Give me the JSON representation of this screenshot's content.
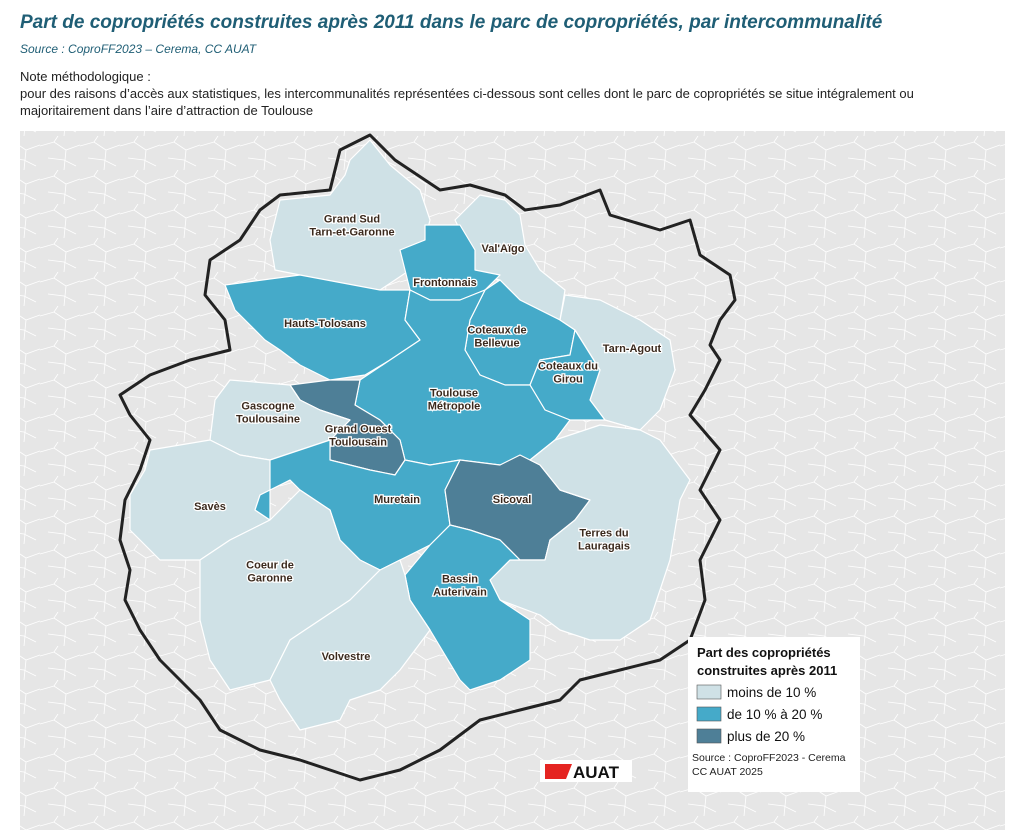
{
  "header": {
    "title": "Part de copropriétés construites après 2011 dans le parc de copropriétés, par intercommunalité",
    "source": "Source : CoproFF2023 – Cerema, CC AUAT"
  },
  "note": {
    "heading": "Note méthodologique :",
    "text": "pour des raisons d’accès aux statistiques, les intercommunalités représentées ci-dessous sont celles dont le parc de copropriétés se situe intégralement ou majoritairement dans l’aire d’attraction de Toulouse"
  },
  "map": {
    "regions": [
      {
        "label": [
          "Grand Sud",
          "Tarn-et-Garonne"
        ],
        "class": 0
      },
      {
        "label": [
          "Val'Aïgo"
        ],
        "class": 0
      },
      {
        "label": [
          "Frontonnais"
        ],
        "class": 1
      },
      {
        "label": [
          "Hauts-Tolosans"
        ],
        "class": 1
      },
      {
        "label": [
          "Coteaux de",
          "Bellevue"
        ],
        "class": 1
      },
      {
        "label": [
          "Tarn-Agout"
        ],
        "class": 0
      },
      {
        "label": [
          "Coteaux du",
          "Girou"
        ],
        "class": 1
      },
      {
        "label": [
          "Toulouse",
          "Métropole"
        ],
        "class": 1
      },
      {
        "label": [
          "Grand Ouest",
          "Toulousain"
        ],
        "class": 2
      },
      {
        "label": [
          "Gascogne",
          "Toulousaine"
        ],
        "class": 0
      },
      {
        "label": [
          "Savès"
        ],
        "class": 0
      },
      {
        "label": [
          "Muretain"
        ],
        "class": 1
      },
      {
        "label": [
          "Sicoval"
        ],
        "class": 2
      },
      {
        "label": [
          "Terres du",
          "Lauragais"
        ],
        "class": 0
      },
      {
        "label": [
          "Bassin",
          "Auterivain"
        ],
        "class": 1
      },
      {
        "label": [
          "Coeur de",
          "Garonne"
        ],
        "class": 0
      },
      {
        "label": [
          "Volvestre"
        ],
        "class": 0
      }
    ]
  },
  "legend": {
    "title": [
      "Part des copropriétés",
      "construites après 2011"
    ],
    "items": [
      {
        "label": "moins de 10 %",
        "color": "#cfe1e6"
      },
      {
        "label": "de 10 % à 20 %",
        "color": "#45aac9"
      },
      {
        "label": "plus de 20 %",
        "color": "#4e7f97"
      }
    ],
    "source": "Source : CoproFF2023 - Cerema",
    "credit": "CC AUAT 2025"
  },
  "logo": "AUAT"
}
